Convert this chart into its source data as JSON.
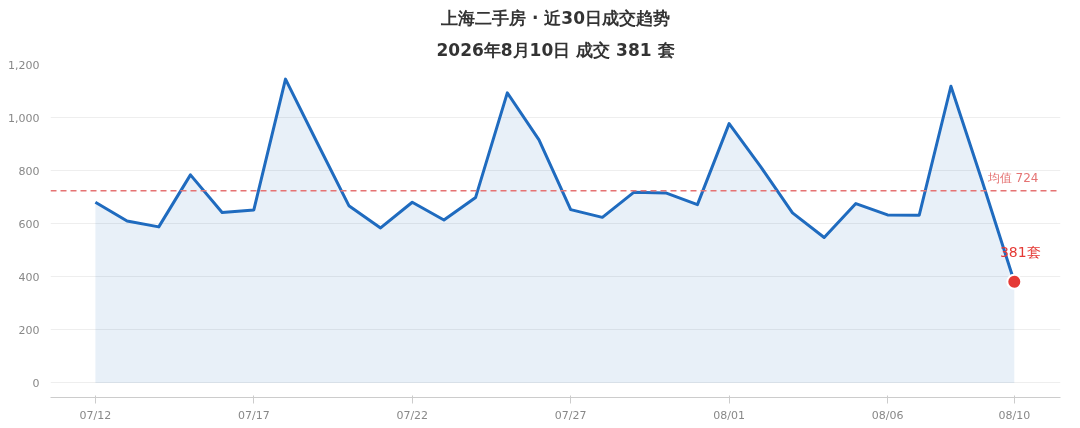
{
  "chart_data": {
    "type": "area",
    "title": "上海二手房 · 近30日成交趋势",
    "subtitle": "2026年8月10日 成交 381 套",
    "x": [
      "2026-07-12",
      "2026-07-13",
      "2026-07-14",
      "2026-07-15",
      "2026-07-16",
      "2026-07-17",
      "2026-07-18",
      "2026-07-19",
      "2026-07-20",
      "2026-07-21",
      "2026-07-22",
      "2026-07-23",
      "2026-07-24",
      "2026-07-25",
      "2026-07-26",
      "2026-07-27",
      "2026-07-28",
      "2026-07-29",
      "2026-07-30",
      "2026-07-31",
      "2026-08-01",
      "2026-08-02",
      "2026-08-03",
      "2026-08-04",
      "2026-08-05",
      "2026-08-06",
      "2026-08-07",
      "2026-08-08",
      "2026-08-09",
      "2026-08-10"
    ],
    "series": [
      {
        "color": "#1f6bbf",
        "values": [
          681,
          610,
          588,
          784,
          642,
          652,
          1145,
          905,
          668,
          584,
          681,
          614,
          699,
          1093,
          916,
          653,
          624,
          719,
          716,
          672,
          977,
          814,
          641,
          548,
          676,
          633,
          632,
          1118,
          755,
          381
        ]
      },
      {
        "type": "scatter",
        "color": "#e53935",
        "marker": "circle",
        "x": [
          "2026-08-10"
        ],
        "values": [
          381
        ]
      }
    ],
    "xlim": [
      "2026-07-10T14:00",
      "2026-08-11T11:00"
    ],
    "xticks": [
      {
        "value": "2026-07-12",
        "label": "07/12"
      },
      {
        "value": "2026-07-17",
        "label": "07/17"
      },
      {
        "value": "2026-07-22",
        "label": "07/22"
      },
      {
        "value": "2026-07-27",
        "label": "07/27"
      },
      {
        "value": "2026-08-01",
        "label": "08/01"
      },
      {
        "value": "2026-08-06",
        "label": "08/06"
      },
      {
        "value": "2026-08-10",
        "label": "08/10"
      }
    ],
    "ylim": [
      -55,
      1200
    ],
    "yticks": [
      0,
      200,
      400,
      600,
      800,
      {
        "value": 1000,
        "label": "1,000"
      },
      {
        "value": 1200,
        "label": "1,200"
      }
    ],
    "grid": "y",
    "ref_lines": [
      {
        "axis": "y",
        "value": 724,
        "label": "均值 724",
        "color": "#e57373",
        "line_style": "dashed"
      }
    ],
    "annotations": [
      {
        "text": "381套",
        "x": "2026-08-10",
        "y": 381
      }
    ]
  }
}
